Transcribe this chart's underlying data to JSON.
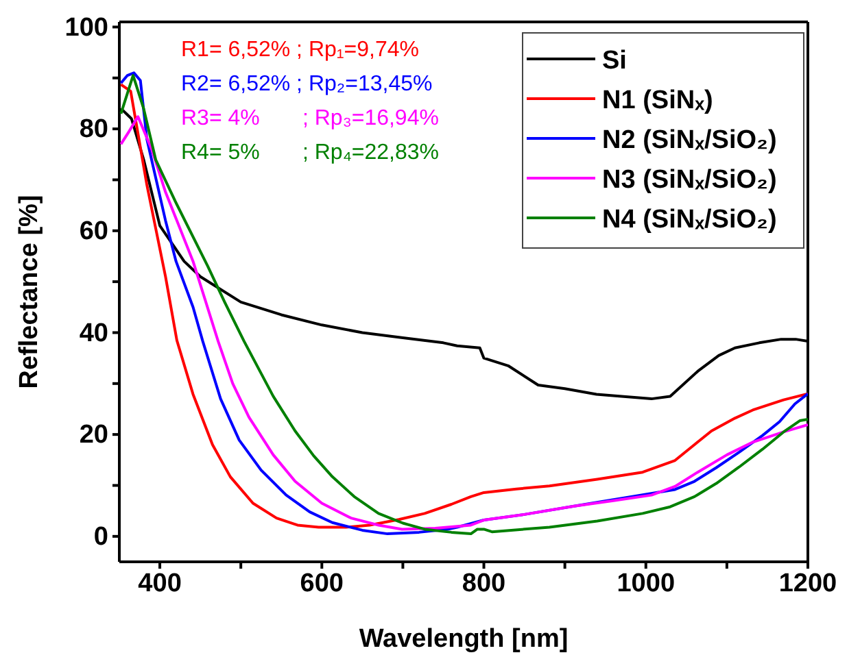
{
  "chart_data": {
    "type": "line",
    "xlabel": "Wavelength [nm]",
    "ylabel": "Reflectance [%]",
    "xlim": [
      350,
      1200
    ],
    "ylim": [
      -5,
      101
    ],
    "xticks": [
      400,
      {
        "value": 500,
        "label": null
      },
      600,
      {
        "value": 700,
        "label": null
      },
      800,
      {
        "value": 900,
        "label": null
      },
      1000,
      {
        "value": 1100,
        "label": null
      },
      1200
    ],
    "yticks": [
      0,
      {
        "value": 10,
        "label": null
      },
      20,
      {
        "value": 30,
        "label": null
      },
      40,
      {
        "value": 50,
        "label": null
      },
      60,
      {
        "value": 70,
        "label": null
      },
      80,
      {
        "value": 90,
        "label": null
      },
      100
    ],
    "legend": "top right",
    "grid": false,
    "marker": "none",
    "line_style": "solid",
    "annotations": [
      "R1= 6,52% ; Rp₁=9,74%",
      "R2= 6,52% ; Rp₂=13,45%",
      "R3= 4%       ; Rp₃=16,94%",
      "R4= 5%       ; Rp₄=22,83%"
    ],
    "series": [
      {
        "name": "Si",
        "color": "#000000",
        "x": [
          352,
          365,
          380,
          400,
          430,
          450,
          500,
          550,
          600,
          650,
          700,
          750,
          767,
          795,
          800,
          830,
          867,
          900,
          939,
          970,
          1007,
          1030,
          1064,
          1090,
          1110,
          1140,
          1167,
          1185,
          1200
        ],
        "values": [
          84,
          82,
          74,
          61,
          54,
          51,
          46,
          43.5,
          41.5,
          40,
          39,
          38,
          37.4,
          37,
          35,
          33.5,
          29.7,
          29,
          27.9,
          27.5,
          27,
          27.5,
          32.4,
          35.5,
          37,
          38,
          38.7,
          38.7,
          38.3
        ]
      },
      {
        "name": "N1 (SiNₓ)",
        "color": "#ff0000",
        "x": [
          352,
          364,
          384,
          407,
          421,
          441,
          465,
          487,
          515,
          544,
          570,
          596,
          630,
          659,
          695,
          727,
          760,
          784,
          800,
          840,
          881,
          940,
          996,
          1036,
          1060,
          1081,
          1110,
          1132,
          1170,
          1200
        ],
        "values": [
          88.7,
          87.4,
          69,
          51,
          38.5,
          27.9,
          18,
          11.7,
          6.5,
          3.6,
          2.2,
          1.8,
          1.8,
          2.2,
          3.3,
          4.5,
          6.3,
          7.8,
          8.6,
          9.3,
          9.9,
          11.2,
          12.6,
          14.9,
          18,
          20.7,
          23.2,
          24.8,
          26.8,
          28
        ]
      },
      {
        "name": "N2 (SiNₓ/SiO₂)",
        "color": "#0000ff",
        "x": [
          352,
          360,
          368,
          376,
          384,
          407,
          420,
          441,
          453,
          475,
          498,
          525,
          556,
          585,
          613,
          650,
          681,
          720,
          755,
          767,
          800,
          850,
          910,
          1036,
          1060,
          1087,
          1115,
          1144,
          1165,
          1184,
          1200
        ],
        "values": [
          89,
          90.5,
          91,
          89.5,
          78,
          62,
          54,
          45,
          38.3,
          27,
          18.9,
          13,
          8.1,
          4.8,
          2.7,
          1.2,
          0.5,
          0.8,
          1.4,
          1.8,
          3.2,
          4.3,
          5.9,
          9.2,
          10.8,
          13.5,
          16.5,
          19.8,
          22.5,
          26,
          28
        ]
      },
      {
        "name": "N3 (SiNₓ/SiO₂)",
        "color": "#ff00ff",
        "x": [
          352,
          362,
          373,
          390,
          407,
          441,
          472,
          490,
          510,
          540,
          567,
          600,
          636,
          670,
          699,
          740,
          784,
          800,
          850,
          910,
          960,
          1007,
          1036,
          1064,
          1100,
          1132,
          1170,
          1200
        ],
        "values": [
          77,
          79.5,
          82.4,
          76,
          67.6,
          54,
          38.3,
          30,
          23.4,
          16,
          10.8,
          6.5,
          3.6,
          2.2,
          1.4,
          1.6,
          2.2,
          3.2,
          4.3,
          5.9,
          7,
          8.1,
          9.8,
          12.6,
          16,
          18.5,
          20.5,
          21.9
        ]
      },
      {
        "name": "N4 (SiNₓ/SiO₂)",
        "color": "#008000",
        "x": [
          352,
          360,
          367,
          380,
          395,
          419,
          459,
          480,
          504,
          515,
          540,
          567,
          590,
          613,
          640,
          670,
          700,
          727,
          760,
          784,
          792,
          800,
          810,
          881,
          940,
          996,
          1030,
          1060,
          1087,
          1115,
          1144,
          1170,
          1190,
          1200
        ],
        "values": [
          83,
          87,
          90.5,
          84,
          73.9,
          65.8,
          53.1,
          46,
          38.3,
          35,
          27.5,
          20.7,
          15.8,
          11.7,
          7.8,
          4.5,
          2.6,
          1.4,
          0.8,
          0.5,
          1.4,
          1.4,
          0.9,
          1.8,
          3,
          4.5,
          5.8,
          7.8,
          10.4,
          13.6,
          17.1,
          20.5,
          22.7,
          23
        ]
      }
    ]
  }
}
